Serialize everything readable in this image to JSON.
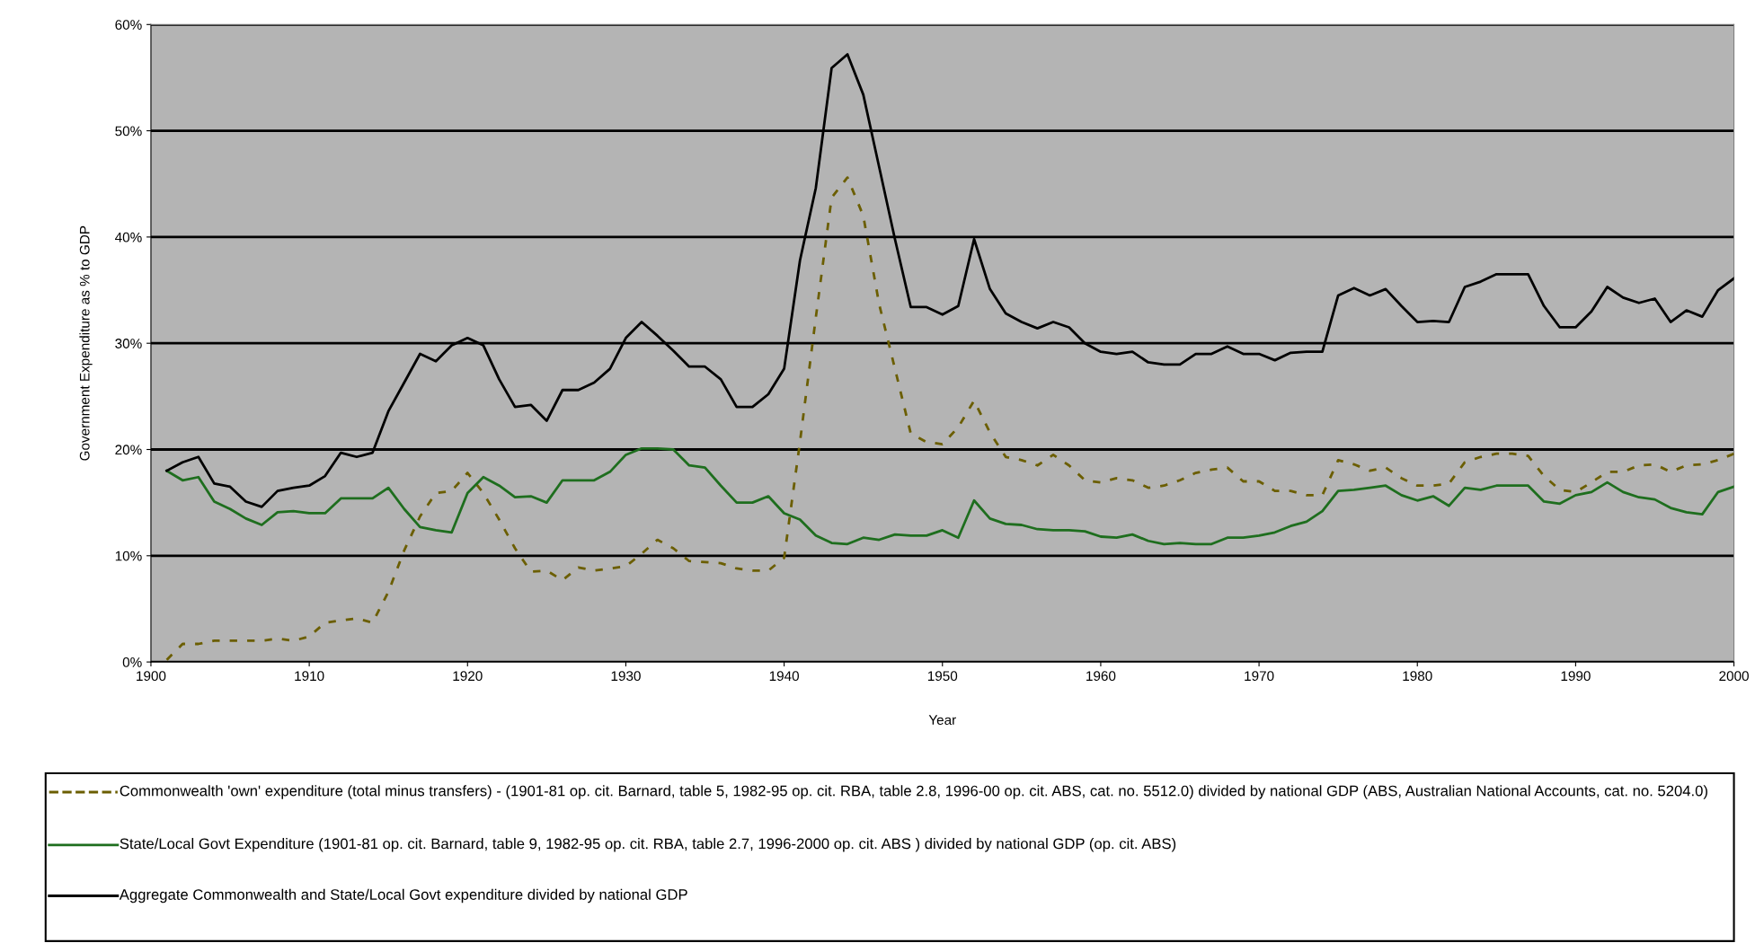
{
  "chart_data": {
    "type": "line",
    "xlabel": "Year",
    "ylabel": "Government Expenditure as % to GDP",
    "xlim": [
      1900,
      2000
    ],
    "xticks": [
      1900,
      1910,
      1920,
      1930,
      1940,
      1950,
      1960,
      1970,
      1980,
      1990,
      2000
    ],
    "ylim": [
      0,
      60
    ],
    "yticks": [
      {
        "value": 0,
        "label": "0%"
      },
      {
        "value": 10,
        "label": "10%"
      },
      {
        "value": 20,
        "label": "20%"
      },
      {
        "value": 30,
        "label": "30%"
      },
      {
        "value": 40,
        "label": "40%"
      },
      {
        "value": 50,
        "label": "50%"
      },
      {
        "value": 60,
        "label": "60%"
      }
    ],
    "grid": "y",
    "legend": "bottom",
    "marker": "none",
    "x": [
      1901,
      1902,
      1903,
      1904,
      1905,
      1906,
      1907,
      1908,
      1909,
      1910,
      1911,
      1912,
      1913,
      1914,
      1915,
      1916,
      1917,
      1918,
      1919,
      1920,
      1921,
      1922,
      1923,
      1924,
      1925,
      1926,
      1927,
      1928,
      1929,
      1930,
      1931,
      1932,
      1933,
      1934,
      1935,
      1936,
      1937,
      1938,
      1939,
      1940,
      1941,
      1942,
      1943,
      1944,
      1945,
      1946,
      1947,
      1948,
      1949,
      1950,
      1951,
      1952,
      1953,
      1954,
      1955,
      1956,
      1957,
      1958,
      1959,
      1960,
      1961,
      1962,
      1963,
      1964,
      1965,
      1966,
      1967,
      1968,
      1969,
      1970,
      1971,
      1972,
      1973,
      1974,
      1975,
      1976,
      1977,
      1978,
      1979,
      1980,
      1981,
      1982,
      1983,
      1984,
      1985,
      1986,
      1987,
      1988,
      1989,
      1990,
      1991,
      1992,
      1993,
      1994,
      1995,
      1996,
      1997,
      1998,
      1999,
      2000
    ],
    "series": [
      {
        "name": "Commonwealth 'own' expenditure (total minus transfers) - (1901-81 op. cit. Barnard, table 5, 1982-95 op. cit. RBA, table 2.8, 1996-00 op. cit. ABS, cat. no. 5512.0) divided by national GDP (ABS, Australian National Accounts, cat. no. 5204.0)",
        "color": "#6b5e00",
        "line_style": "dashed",
        "values": [
          0.2,
          1.7,
          1.7,
          2.0,
          2.0,
          2.0,
          2.0,
          2.2,
          2.0,
          2.4,
          3.7,
          3.9,
          4.1,
          3.7,
          6.6,
          10.5,
          13.7,
          15.9,
          16.1,
          17.8,
          15.9,
          13.4,
          10.7,
          8.5,
          8.6,
          7.7,
          8.9,
          8.6,
          8.8,
          9.0,
          10.2,
          11.5,
          10.7,
          9.5,
          9.4,
          9.3,
          8.8,
          8.6,
          8.6,
          9.8,
          20.7,
          32.4,
          43.7,
          45.6,
          42.0,
          33.7,
          27.6,
          21.5,
          20.7,
          20.5,
          22.1,
          24.6,
          21.6,
          19.3,
          19.0,
          18.5,
          19.5,
          18.5,
          17.1,
          16.9,
          17.3,
          17.1,
          16.4,
          16.6,
          17.1,
          17.8,
          18.1,
          18.3,
          17.0,
          17.0,
          16.1,
          16.1,
          15.7,
          15.7,
          19.0,
          18.6,
          18.0,
          18.3,
          17.3,
          16.6,
          16.6,
          16.8,
          18.8,
          19.3,
          19.6,
          19.6,
          19.4,
          17.5,
          16.2,
          16.0,
          16.9,
          17.9,
          17.9,
          18.5,
          18.6,
          17.9,
          18.5,
          18.6,
          19.0,
          19.6
        ]
      },
      {
        "name": "State/Local Govt Expenditure (1901-81 op. cit. Barnard, table 9, 1982-95 op. cit. RBA, table 2.7, 1996-2000 op. cit. ABS ) divided by national GDP (op. cit. ABS)",
        "color": "#1e6e1e",
        "line_style": "solid",
        "values": [
          18.0,
          17.1,
          17.4,
          15.1,
          14.4,
          13.5,
          12.9,
          14.1,
          14.2,
          14.0,
          14.0,
          15.4,
          15.4,
          15.4,
          16.4,
          14.4,
          12.7,
          12.4,
          12.2,
          15.9,
          17.4,
          16.6,
          15.5,
          15.6,
          15.0,
          17.1,
          17.1,
          17.1,
          17.9,
          19.5,
          20.1,
          20.1,
          20.0,
          18.5,
          18.3,
          16.6,
          15.0,
          15.0,
          15.6,
          14.0,
          13.4,
          11.9,
          11.2,
          11.1,
          11.7,
          11.5,
          12.0,
          11.9,
          11.9,
          12.4,
          11.7,
          15.2,
          13.5,
          13.0,
          12.9,
          12.5,
          12.4,
          12.4,
          12.3,
          11.8,
          11.7,
          12.0,
          11.4,
          11.1,
          11.2,
          11.1,
          11.1,
          11.7,
          11.7,
          11.9,
          12.2,
          12.8,
          13.2,
          14.2,
          16.1,
          16.2,
          16.4,
          16.6,
          15.7,
          15.2,
          15.6,
          14.7,
          16.4,
          16.2,
          16.6,
          16.6,
          16.6,
          15.1,
          14.9,
          15.7,
          16.0,
          16.9,
          16.0,
          15.5,
          15.3,
          14.5,
          14.1,
          13.9,
          16.0,
          16.5
        ]
      },
      {
        "name": "Aggregate Commonwealth and State/Local Govt expenditure divided by national GDP",
        "color": "#000000",
        "line_style": "solid",
        "values": [
          18.0,
          18.8,
          19.3,
          16.8,
          16.5,
          15.1,
          14.6,
          16.1,
          16.4,
          16.6,
          17.5,
          19.7,
          19.3,
          19.7,
          23.6,
          26.3,
          29.0,
          28.3,
          29.8,
          30.5,
          29.8,
          26.6,
          24.0,
          24.2,
          22.7,
          25.6,
          25.6,
          26.3,
          27.6,
          30.5,
          32.0,
          30.7,
          29.3,
          27.8,
          27.8,
          26.6,
          24.0,
          24.0,
          25.2,
          27.6,
          37.8,
          44.6,
          55.9,
          57.2,
          53.4,
          46.6,
          39.8,
          33.4,
          33.4,
          32.7,
          33.5,
          39.8,
          35.1,
          32.8,
          32.0,
          31.4,
          32.0,
          31.5,
          30.0,
          29.2,
          29.0,
          29.2,
          28.2,
          28.0,
          28.0,
          29.0,
          29.0,
          29.7,
          29.0,
          29.0,
          28.4,
          29.1,
          29.2,
          29.2,
          34.5,
          35.2,
          34.5,
          35.1,
          33.5,
          32.0,
          32.1,
          32.0,
          35.3,
          35.8,
          36.5,
          36.5,
          36.5,
          33.5,
          31.5,
          31.5,
          33.0,
          35.3,
          34.3,
          33.8,
          34.2,
          32.0,
          33.1,
          32.5,
          35.0,
          36.1
        ]
      }
    ]
  }
}
